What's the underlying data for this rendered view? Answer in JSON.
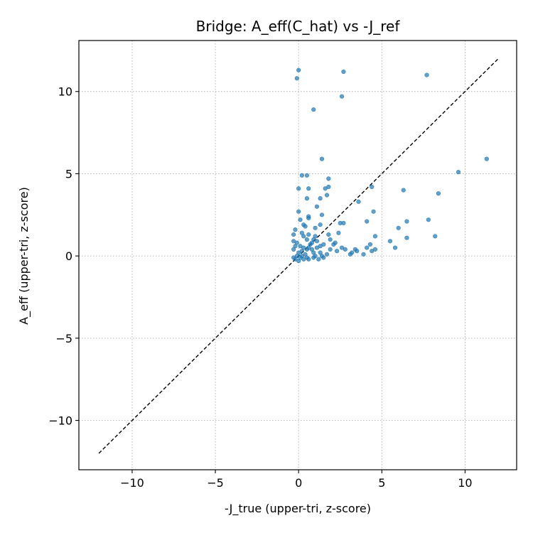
{
  "chart_data": {
    "type": "scatter",
    "title": "Bridge: A_eff(C_hat) vs -J_ref",
    "xlabel": "-J_true (upper-tri, z-score)",
    "ylabel": "A_eff (upper-tri, z-score)",
    "xlim": [
      -13.2,
      13.1
    ],
    "ylim": [
      -13.0,
      13.1
    ],
    "xticks": [
      -10,
      -5,
      0,
      5,
      10
    ],
    "yticks": [
      -10,
      -5,
      0,
      5,
      10
    ],
    "xtick_labels": [
      "−10",
      "−5",
      "0",
      "5",
      "10"
    ],
    "ytick_labels": [
      "−10",
      "−5",
      "0",
      "5",
      "10"
    ],
    "grid": true,
    "grid_style": "dotted",
    "point_color": "#1f77b4",
    "reference_line": {
      "x": [
        -12,
        12
      ],
      "y": [
        -12,
        12
      ],
      "style": "dashed",
      "color": "#000000"
    },
    "points": [
      [
        -0.1,
        10.8
      ],
      [
        0.0,
        11.3
      ],
      [
        0.9,
        8.9
      ],
      [
        2.6,
        9.7
      ],
      [
        2.7,
        11.2
      ],
      [
        7.7,
        11.0
      ],
      [
        1.4,
        5.9
      ],
      [
        11.3,
        5.9
      ],
      [
        9.6,
        5.1
      ],
      [
        8.4,
        3.8
      ],
      [
        7.8,
        2.2
      ],
      [
        8.2,
        1.2
      ],
      [
        6.3,
        4.0
      ],
      [
        6.5,
        2.1
      ],
      [
        6.5,
        1.1
      ],
      [
        6.0,
        1.7
      ],
      [
        5.5,
        0.9
      ],
      [
        5.8,
        0.5
      ],
      [
        4.4,
        4.2
      ],
      [
        4.5,
        2.7
      ],
      [
        4.6,
        1.2
      ],
      [
        4.1,
        2.1
      ],
      [
        3.6,
        3.3
      ],
      [
        4.3,
        0.7
      ],
      [
        4.1,
        0.5
      ],
      [
        4.6,
        0.4
      ],
      [
        4.4,
        0.3
      ],
      [
        3.9,
        0.1
      ],
      [
        3.4,
        0.4
      ],
      [
        3.5,
        0.3
      ],
      [
        3.2,
        0.2
      ],
      [
        3.1,
        0.1
      ],
      [
        2.8,
        0.4
      ],
      [
        2.5,
        2.0
      ],
      [
        2.7,
        2.0
      ],
      [
        2.4,
        1.4
      ],
      [
        1.8,
        4.7
      ],
      [
        1.8,
        4.2
      ],
      [
        1.6,
        4.1
      ],
      [
        1.7,
        3.7
      ],
      [
        1.3,
        3.5
      ],
      [
        1.1,
        3.0
      ],
      [
        0.5,
        4.9
      ],
      [
        0.2,
        4.9
      ],
      [
        0.0,
        4.1
      ],
      [
        0.6,
        4.1
      ],
      [
        0.5,
        3.5
      ],
      [
        0.6,
        2.3
      ],
      [
        0.6,
        2.4
      ],
      [
        0.0,
        2.7
      ],
      [
        0.1,
        2.2
      ],
      [
        0.3,
        1.9
      ],
      [
        0.4,
        1.8
      ],
      [
        1.4,
        2.5
      ],
      [
        1.3,
        1.9
      ],
      [
        1.0,
        1.7
      ],
      [
        1.0,
        1.2
      ],
      [
        0.9,
        1.0
      ],
      [
        0.6,
        1.3
      ],
      [
        0.3,
        1.2
      ],
      [
        0.2,
        1.4
      ],
      [
        0.5,
        1.0
      ],
      [
        1.8,
        1.3
      ],
      [
        1.9,
        1.0
      ],
      [
        2.1,
        0.7
      ],
      [
        2.2,
        0.8
      ],
      [
        1.9,
        0.4
      ],
      [
        1.5,
        0.7
      ],
      [
        1.3,
        0.6
      ],
      [
        1.1,
        0.5
      ],
      [
        0.7,
        0.7
      ],
      [
        0.8,
        0.4
      ],
      [
        0.5,
        0.4
      ],
      [
        0.3,
        0.5
      ],
      [
        0.2,
        0.3
      ],
      [
        0.0,
        0.2
      ],
      [
        -0.1,
        0.0
      ],
      [
        0.1,
        -0.1
      ],
      [
        -0.3,
        0.9
      ],
      [
        -0.3,
        1.3
      ],
      [
        -0.2,
        1.6
      ],
      [
        -0.3,
        0.4
      ],
      [
        -0.3,
        -0.1
      ],
      [
        -0.2,
        -0.2
      ],
      [
        0.0,
        -0.3
      ],
      [
        0.3,
        -0.2
      ],
      [
        0.6,
        -0.2
      ],
      [
        0.9,
        -0.1
      ],
      [
        1.2,
        -0.2
      ],
      [
        1.5,
        -0.1
      ],
      [
        1.7,
        0.1
      ],
      [
        0.4,
        0.1
      ],
      [
        0.9,
        0.2
      ],
      [
        1.3,
        0.2
      ],
      [
        -0.2,
        0.6
      ],
      [
        -0.1,
        0.8
      ],
      [
        0.1,
        0.6
      ],
      [
        0.8,
        0.8
      ],
      [
        2.3,
        0.3
      ],
      [
        2.6,
        0.5
      ],
      [
        0.2,
        0.0
      ],
      [
        0.5,
        -0.1
      ],
      [
        1.0,
        0.0
      ],
      [
        1.4,
        0.0
      ],
      [
        0.6,
        0.5
      ],
      [
        1.1,
        0.9
      ]
    ]
  }
}
